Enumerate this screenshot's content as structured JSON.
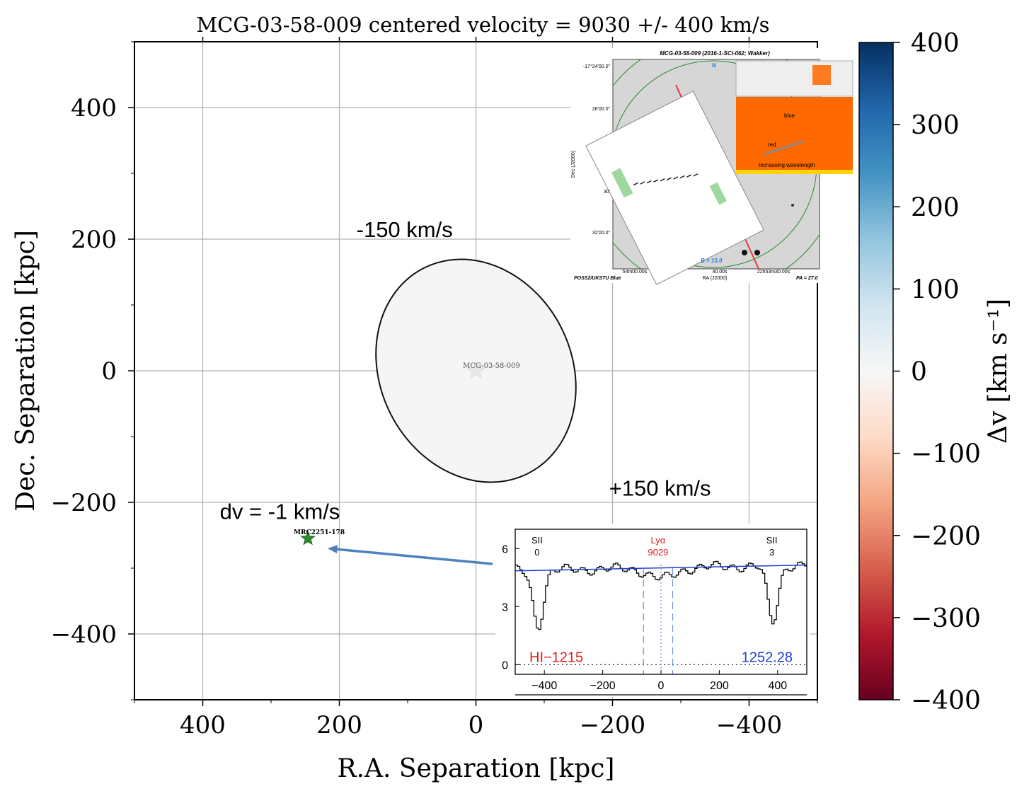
{
  "chart_data": {
    "type": "scatter",
    "title": "MCG-03-58-009 centered velocity = 9030 +/- 400 km/s",
    "xlabel": "R.A. Separation [kpc]",
    "ylabel": "Dec. Separation [kpc]",
    "xlim": [
      500,
      -500
    ],
    "ylim": [
      -500,
      500
    ],
    "x_ticks": [
      400,
      200,
      0,
      -200,
      -400
    ],
    "x_tick_labels": [
      "400",
      "200",
      "0",
      "−200",
      "−400"
    ],
    "y_ticks": [
      400,
      200,
      0,
      -200,
      -400
    ],
    "y_tick_labels": [
      "400",
      "200",
      "0",
      "−200",
      "−400"
    ],
    "grid": true,
    "galaxy": {
      "name": "MCG-03-58-009",
      "x": 0,
      "y": 0,
      "ellipse_semi_axes_kpc": [
        140,
        175
      ],
      "ellipse_rotation_deg": 27,
      "fill_color": "#f5f5f5",
      "edge_color": "#111111"
    },
    "targets": [
      {
        "name": "MRC2251-178",
        "x": 246,
        "y": -255,
        "dv": -1,
        "color": "#2b8a2b"
      }
    ],
    "annotations": [
      {
        "text": "-150 km/s",
        "x": 175,
        "y": 203
      },
      {
        "text": "+150 km/s",
        "x": -195,
        "y": -190
      },
      {
        "text": "dv = -1 km/s",
        "x": 375,
        "y": -225
      }
    ],
    "colorbar": {
      "label": "Δv [km s⁻¹]",
      "range": [
        -400,
        400
      ],
      "ticks": [
        400,
        300,
        200,
        100,
        0,
        -100,
        -200,
        -300,
        -400
      ],
      "tick_labels": [
        "400",
        "300",
        "200",
        "100",
        "0",
        "−100",
        "−200",
        "−300",
        "−400"
      ],
      "colors": [
        "#053061",
        "#2166ac",
        "#4393c3",
        "#92c5de",
        "#d1e5f0",
        "#f7f7f7",
        "#fddbc7",
        "#f4a582",
        "#d6604d",
        "#b2182b",
        "#67001f"
      ]
    },
    "inset_image": {
      "title": "MCG-03-58-009 (2016-1-SCI-062; Wakker)",
      "survey": "POSS2/UKSTU Blue",
      "pa": "PA = 27.0",
      "b": "B = 15.0",
      "compass": "N",
      "ra_label": "RA (J2000)",
      "dec_label": "Dec (J2000)",
      "ra_ticks": [
        "54m00.00s",
        "40.00s",
        "22h53m30.00s"
      ],
      "dec_ticks": [
        "-17°24'00.0\"",
        "26'00.0\"",
        "30'",
        "32'00.0\""
      ],
      "panel_labels": [
        "blue",
        "red",
        "Increasing wavelength"
      ]
    },
    "inset_spectrum": {
      "lya_label": "Lyα",
      "lya_velocity": "9029",
      "left_line": {
        "name": "SII",
        "order": "0"
      },
      "right_line": {
        "name": "SII",
        "order": "3"
      },
      "left_annotation": "HI−1215",
      "right_annotation": "1252.28",
      "xlim": [
        -500,
        500
      ],
      "ylim": [
        -0.5,
        7
      ],
      "x_ticks": [
        -400,
        -200,
        0,
        200,
        400
      ],
      "x_tick_labels": [
        "−400",
        "−200",
        "0",
        "200",
        "400"
      ],
      "y_ticks": [
        0,
        3,
        6
      ],
      "y_tick_labels": [
        "0",
        "3",
        "6"
      ],
      "continuum": [
        4.85,
        5.15
      ],
      "lines": [
        {
          "center": -425,
          "depth": 2.9
        },
        {
          "center": 380,
          "depth": 2.9
        },
        {
          "center": 0,
          "depth": 0.55
        }
      ],
      "dashed_markers": [
        -60,
        40
      ],
      "dotted_marker": 0
    }
  }
}
